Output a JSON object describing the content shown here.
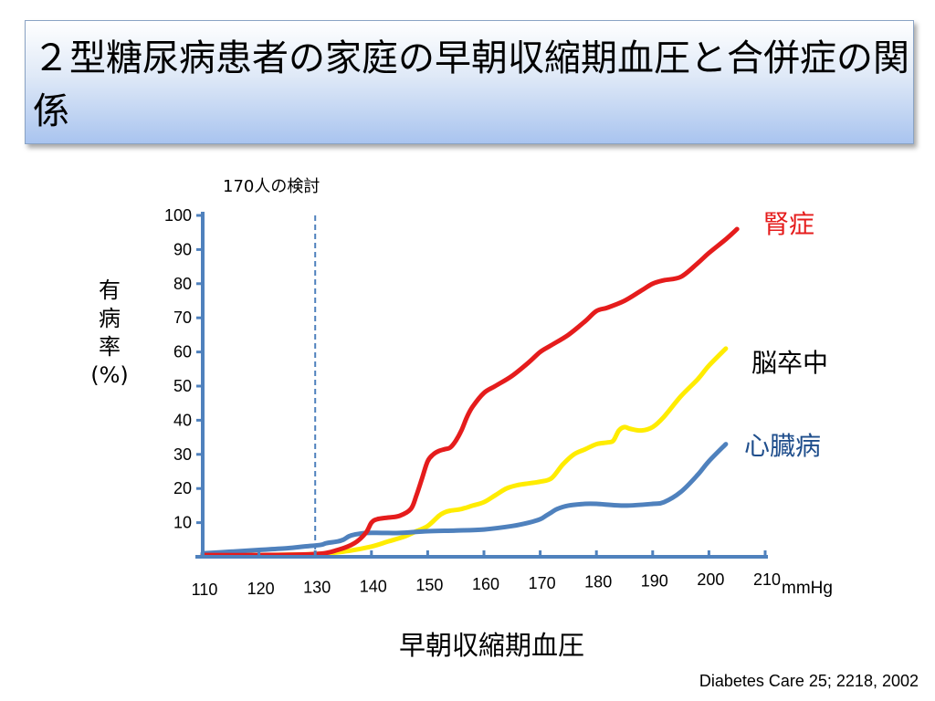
{
  "slide": {
    "title": "２型糖尿病患者の家庭の早朝収縮期血圧と合併症の関係",
    "citation": "Diabetes Care 25; 2218, 2002"
  },
  "chart_data": {
    "type": "line",
    "annotation": "170人の検討",
    "xlabel": "早朝収縮期血圧",
    "xunit": "mmHg",
    "ylabel": [
      "有",
      "病",
      "率",
      "(%)"
    ],
    "xlim": [
      110,
      210
    ],
    "ylim": [
      0,
      100
    ],
    "x_ticks": [
      110,
      120,
      130,
      140,
      150,
      160,
      170,
      180,
      190,
      200,
      210
    ],
    "y_ticks": [
      10,
      20,
      30,
      40,
      50,
      60,
      70,
      80,
      90,
      100
    ],
    "reference_line_x": 130,
    "series": [
      {
        "name": "腎症",
        "color": "#e51c1c",
        "x": [
          110,
          120,
          130,
          134,
          137,
          139,
          140,
          141,
          143,
          145,
          147,
          148,
          149,
          150,
          151,
          152,
          153,
          154,
          155,
          156,
          157,
          158,
          160,
          162,
          165,
          168,
          170,
          172,
          175,
          178,
          180,
          182,
          185,
          188,
          190,
          192,
          195,
          198,
          200,
          203,
          205
        ],
        "y": [
          0.5,
          0.5,
          0.8,
          2,
          4,
          7,
          10,
          11,
          11.5,
          12,
          14,
          18,
          23,
          28,
          30,
          31,
          31.5,
          32,
          34,
          37,
          41,
          44,
          48,
          50,
          53,
          57,
          60,
          62,
          65,
          69,
          72,
          73,
          75,
          78,
          80,
          81,
          82,
          86,
          89,
          93,
          96
        ]
      },
      {
        "name": "脳卒中",
        "color": "#ffec00",
        "x": [
          110,
          120,
          130,
          135,
          140,
          143,
          146,
          148,
          150,
          152,
          153,
          154,
          156,
          158,
          160,
          162,
          164,
          166,
          168,
          170,
          172,
          174,
          176,
          178,
          180,
          182,
          183,
          184,
          185,
          186,
          188,
          190,
          192,
          195,
          198,
          200,
          203
        ],
        "y": [
          0.5,
          0.5,
          0.8,
          1.5,
          3,
          4.5,
          6,
          7.5,
          9,
          12,
          13,
          13.5,
          14,
          15,
          16,
          18,
          20,
          21,
          21.5,
          22,
          23,
          27,
          30,
          31.5,
          33,
          33.5,
          34,
          37,
          38,
          37.5,
          37,
          38,
          41,
          47,
          52,
          56,
          61
        ]
      },
      {
        "name": "心臓病",
        "color": "#4f81bd",
        "x": [
          110,
          115,
          120,
          125,
          128,
          131,
          132,
          134,
          135,
          136,
          137,
          139,
          142,
          145,
          150,
          155,
          160,
          165,
          168,
          170,
          171,
          172,
          173,
          175,
          178,
          180,
          185,
          190,
          192,
          195,
          198,
          200,
          203
        ],
        "y": [
          1,
          1.5,
          2,
          2.5,
          3,
          3.5,
          4,
          4.5,
          5,
          6,
          6.5,
          7,
          7,
          7,
          7.5,
          7.7,
          8,
          9,
          10,
          11,
          12,
          13,
          14,
          15,
          15.5,
          15.5,
          15,
          15.5,
          16,
          19,
          24,
          28,
          33
        ]
      }
    ]
  }
}
